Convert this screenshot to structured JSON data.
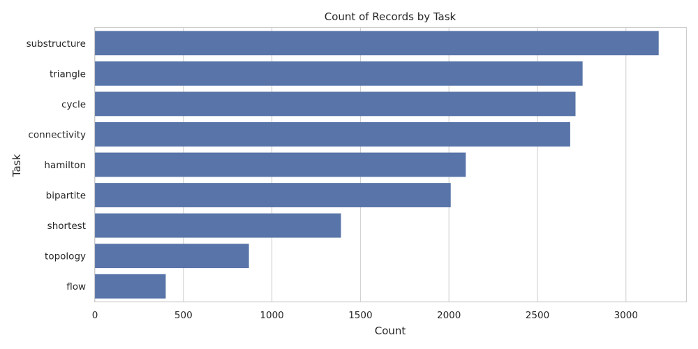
{
  "chart_data": {
    "type": "bar",
    "orientation": "horizontal",
    "title": "Count of Records by Task",
    "xlabel": "Count",
    "ylabel": "Task",
    "categories": [
      "substructure",
      "triangle",
      "cycle",
      "connectivity",
      "hamilton",
      "bipartite",
      "shortest",
      "topology",
      "flow"
    ],
    "values": [
      3185,
      2755,
      2715,
      2685,
      2095,
      2010,
      1390,
      870,
      400
    ],
    "xlim": [
      0,
      3340
    ],
    "xticks": [
      0,
      500,
      1000,
      1500,
      2000,
      2500,
      3000
    ],
    "grid": true,
    "legend": "none",
    "bar_color": "#5874a8"
  }
}
